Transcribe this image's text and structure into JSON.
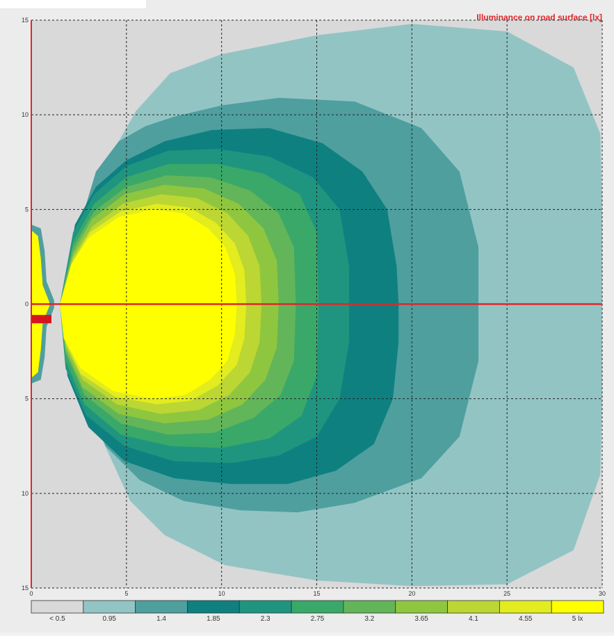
{
  "chart_data": {
    "type": "heatmap",
    "title": "Illuminance on road surface [lx]",
    "xlim": [
      0,
      30
    ],
    "ylim": [
      -15,
      15
    ],
    "x_ticks": [
      0,
      5,
      10,
      15,
      20,
      25,
      30
    ],
    "y_ticks": [
      15,
      10,
      5,
      0,
      5,
      10,
      15
    ],
    "grid": true,
    "colorbar": {
      "labels": [
        "< 0.5",
        "0.95",
        "1.4",
        "1.85",
        "2.3",
        "2.75",
        "3.2",
        "3.65",
        "4.1",
        "4.55",
        "5 lx"
      ],
      "colors": [
        "#d9d9d9",
        "#93c4c4",
        "#4f9f9f",
        "#0f8080",
        "#1f9580",
        "#3aa868",
        "#63b55a",
        "#8fc63f",
        "#bcd633",
        "#e2ec1f",
        "#ffff00"
      ]
    },
    "series": [
      {
        "level": 0.95,
        "points": [
          [
            2.8,
            0
          ],
          [
            3.2,
            -6
          ],
          [
            5.2,
            -10.4
          ],
          [
            7,
            -12.2
          ],
          [
            10.2,
            -13.8
          ],
          [
            15,
            -14.6
          ],
          [
            20,
            -14.9
          ],
          [
            25,
            -14.8
          ],
          [
            28.5,
            -13
          ],
          [
            29.9,
            -9
          ],
          [
            30,
            -5
          ],
          [
            30,
            0
          ],
          [
            30,
            5
          ],
          [
            29.9,
            9
          ],
          [
            28.5,
            12.5
          ],
          [
            25,
            14.4
          ],
          [
            20,
            14.8
          ],
          [
            15,
            14.2
          ],
          [
            10,
            13.2
          ],
          [
            7.3,
            12.2
          ],
          [
            5.5,
            10.2
          ],
          [
            3.8,
            7.2
          ],
          [
            3.2,
            5.2
          ]
        ]
      },
      {
        "level": 1.4,
        "points": [
          [
            2.6,
            0
          ],
          [
            2.8,
            -4.5
          ],
          [
            3.9,
            -7.5
          ],
          [
            5.7,
            -9.3
          ],
          [
            8,
            -10.4
          ],
          [
            11,
            -10.9
          ],
          [
            14,
            -11
          ],
          [
            17,
            -10.5
          ],
          [
            20.5,
            -9.2
          ],
          [
            22.5,
            -7
          ],
          [
            23.5,
            -3
          ],
          [
            23.5,
            0
          ],
          [
            23.5,
            3
          ],
          [
            22.5,
            7
          ],
          [
            20.5,
            9.3
          ],
          [
            17,
            10.7
          ],
          [
            13,
            10.9
          ],
          [
            10,
            10.5
          ],
          [
            7.5,
            9.9
          ],
          [
            6,
            9.4
          ],
          [
            4.6,
            8.6
          ],
          [
            3.4,
            7
          ],
          [
            2.8,
            5
          ]
        ]
      },
      {
        "level": 1.85,
        "points": [
          [
            1.5,
            0
          ],
          [
            1.9,
            -3.8
          ],
          [
            3,
            -6.5
          ],
          [
            4.9,
            -8.3
          ],
          [
            7.5,
            -9.2
          ],
          [
            10.5,
            -9.5
          ],
          [
            13.5,
            -9.5
          ],
          [
            16,
            -8.8
          ],
          [
            18,
            -7.4
          ],
          [
            19,
            -5
          ],
          [
            19.3,
            -2
          ],
          [
            19.3,
            0
          ],
          [
            19.2,
            2
          ],
          [
            18.7,
            5
          ],
          [
            17.4,
            7
          ],
          [
            15.3,
            8.5
          ],
          [
            12.5,
            9.3
          ],
          [
            9.5,
            9.2
          ],
          [
            7,
            8.6
          ],
          [
            5,
            7.6
          ],
          [
            3.4,
            6.2
          ],
          [
            2.3,
            4.2
          ]
        ]
      },
      {
        "level": 2.3,
        "points": [
          [
            1.5,
            0
          ],
          [
            1.8,
            -3.4
          ],
          [
            2.9,
            -5.9
          ],
          [
            4.9,
            -7.5
          ],
          [
            7.5,
            -8.3
          ],
          [
            10.5,
            -8.4
          ],
          [
            13,
            -8
          ],
          [
            15,
            -7
          ],
          [
            16.2,
            -5
          ],
          [
            16.7,
            -2
          ],
          [
            16.7,
            0
          ],
          [
            16.7,
            2
          ],
          [
            16.2,
            5
          ],
          [
            14.8,
            6.7
          ],
          [
            12.5,
            7.8
          ],
          [
            9.8,
            8.2
          ],
          [
            7.2,
            8.1
          ],
          [
            5,
            7.3
          ],
          [
            3.3,
            5.8
          ],
          [
            2.2,
            3.8
          ]
        ]
      },
      {
        "level": 2.75,
        "points": [
          [
            1.5,
            0
          ],
          [
            1.8,
            -3
          ],
          [
            2.8,
            -5.3
          ],
          [
            4.7,
            -6.9
          ],
          [
            7.3,
            -7.5
          ],
          [
            10,
            -7.6
          ],
          [
            12.5,
            -7.1
          ],
          [
            14.2,
            -5.9
          ],
          [
            15,
            -3.8
          ],
          [
            15.1,
            0
          ],
          [
            15,
            3.8
          ],
          [
            14.1,
            5.8
          ],
          [
            12.2,
            6.9
          ],
          [
            9.8,
            7.4
          ],
          [
            7.2,
            7.4
          ],
          [
            5,
            6.7
          ],
          [
            3.3,
            5.3
          ],
          [
            2.2,
            3.3
          ]
        ]
      },
      {
        "level": 3.2,
        "points": [
          [
            1.5,
            0
          ],
          [
            1.8,
            -2.6
          ],
          [
            2.8,
            -4.8
          ],
          [
            4.7,
            -6.3
          ],
          [
            7.2,
            -6.9
          ],
          [
            9.6,
            -6.8
          ],
          [
            11.7,
            -6
          ],
          [
            13.1,
            -4.8
          ],
          [
            13.8,
            -3
          ],
          [
            13.9,
            0
          ],
          [
            13.8,
            3
          ],
          [
            13.0,
            4.8
          ],
          [
            11.5,
            6
          ],
          [
            9.4,
            6.7
          ],
          [
            7.1,
            6.8
          ],
          [
            5,
            6.2
          ],
          [
            3.3,
            4.9
          ],
          [
            2.2,
            3
          ]
        ]
      },
      {
        "level": 3.65,
        "points": [
          [
            1.5,
            0
          ],
          [
            1.8,
            -2.4
          ],
          [
            2.7,
            -4.4
          ],
          [
            4.6,
            -5.8
          ],
          [
            7,
            -6.3
          ],
          [
            9.3,
            -6.1
          ],
          [
            11.1,
            -5.3
          ],
          [
            12.3,
            -4
          ],
          [
            12.9,
            -2.3
          ],
          [
            13,
            0
          ],
          [
            12.9,
            2.3
          ],
          [
            12.2,
            4
          ],
          [
            10.9,
            5.3
          ],
          [
            9.1,
            6.1
          ],
          [
            7,
            6.3
          ],
          [
            4.9,
            5.8
          ],
          [
            3.2,
            4.5
          ],
          [
            2.2,
            2.7
          ]
        ]
      },
      {
        "level": 4.1,
        "points": [
          [
            1.5,
            0
          ],
          [
            1.8,
            -2.2
          ],
          [
            2.7,
            -4
          ],
          [
            4.5,
            -5.3
          ],
          [
            6.8,
            -5.8
          ],
          [
            8.8,
            -5.6
          ],
          [
            10.4,
            -4.8
          ],
          [
            11.5,
            -3.6
          ],
          [
            12,
            -2
          ],
          [
            12.1,
            0
          ],
          [
            12,
            2
          ],
          [
            11.4,
            3.6
          ],
          [
            10.3,
            4.8
          ],
          [
            8.7,
            5.6
          ],
          [
            6.8,
            5.8
          ],
          [
            4.8,
            5.3
          ],
          [
            3.2,
            4.1
          ],
          [
            2.2,
            2.5
          ]
        ]
      },
      {
        "level": 4.55,
        "points": [
          [
            1.5,
            0
          ],
          [
            1.8,
            -2
          ],
          [
            2.6,
            -3.7
          ],
          [
            4.4,
            -4.9
          ],
          [
            6.6,
            -5.3
          ],
          [
            8.4,
            -5.1
          ],
          [
            9.8,
            -4.3
          ],
          [
            10.8,
            -3.2
          ],
          [
            11.2,
            -1.8
          ],
          [
            11.3,
            0
          ],
          [
            11.2,
            1.8
          ],
          [
            10.7,
            3.2
          ],
          [
            9.7,
            4.3
          ],
          [
            8.3,
            5.1
          ],
          [
            6.6,
            5.3
          ],
          [
            4.7,
            4.9
          ],
          [
            3.1,
            3.8
          ],
          [
            2.2,
            2.3
          ]
        ]
      },
      {
        "level": 5.0,
        "points": [
          [
            1.5,
            0
          ],
          [
            1.7,
            -1.8
          ],
          [
            2.6,
            -3.4
          ],
          [
            4.3,
            -4.6
          ],
          [
            6.4,
            -5
          ],
          [
            8.1,
            -4.8
          ],
          [
            9.4,
            -4
          ],
          [
            10.3,
            -3
          ],
          [
            10.7,
            -1.6
          ],
          [
            10.8,
            0
          ],
          [
            10.7,
            1.6
          ],
          [
            10.2,
            3
          ],
          [
            9.3,
            4
          ],
          [
            8,
            4.8
          ],
          [
            6.4,
            5
          ],
          [
            4.6,
            4.6
          ],
          [
            3,
            3.5
          ],
          [
            2.1,
            2.1
          ]
        ]
      }
    ],
    "near_field": [
      {
        "level": 1.4,
        "side": "left-lobe",
        "points": [
          [
            0,
            4.2
          ],
          [
            0.5,
            4
          ],
          [
            0.7,
            2.8
          ],
          [
            0.8,
            1.2
          ],
          [
            1.2,
            0.2
          ],
          [
            1.2,
            -0.2
          ],
          [
            0.8,
            -1.2
          ],
          [
            0.7,
            -2.8
          ],
          [
            0.5,
            -4
          ],
          [
            0,
            -4.2
          ]
        ]
      },
      {
        "level": 5.0,
        "side": "left-lobe",
        "points": [
          [
            0,
            3.9
          ],
          [
            0.35,
            3.6
          ],
          [
            0.5,
            2.4
          ],
          [
            0.6,
            1
          ],
          [
            0.95,
            0.1
          ],
          [
            0.95,
            -0.1
          ],
          [
            0.6,
            -1
          ],
          [
            0.5,
            -2.4
          ],
          [
            0.35,
            -3.6
          ],
          [
            0,
            -3.9
          ]
        ]
      }
    ]
  }
}
